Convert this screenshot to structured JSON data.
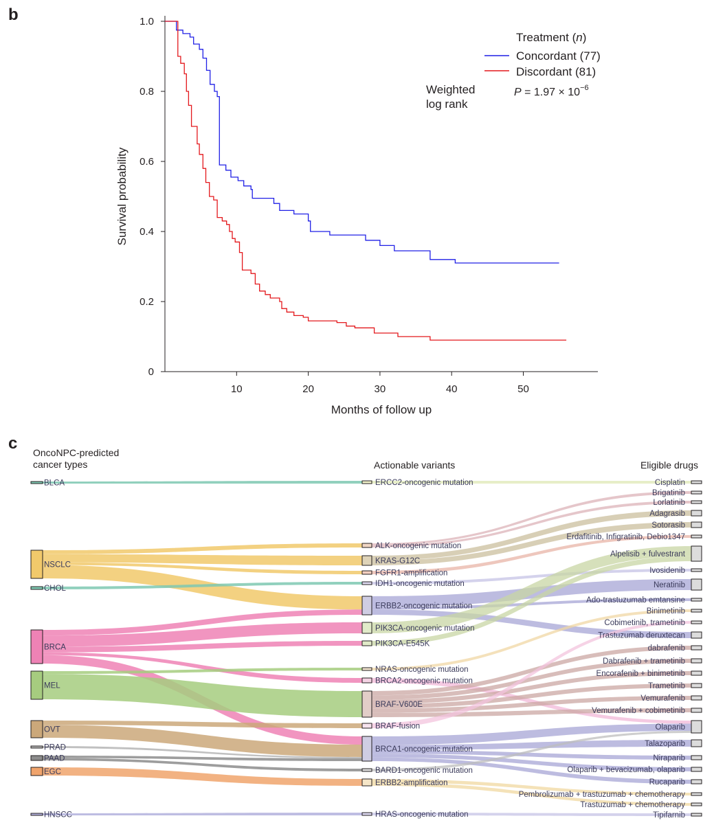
{
  "panel_b_label": "b",
  "panel_c_label": "c",
  "chart_data": [
    {
      "type": "line",
      "subtype": "kaplan-meier-step",
      "xlabel": "Months of follow up",
      "ylabel": "Survival probability",
      "xlim": [
        0,
        60
      ],
      "ylim": [
        0,
        1
      ],
      "xticks": [
        10,
        20,
        30,
        40,
        50
      ],
      "yticks": [
        0,
        0.2,
        0.4,
        0.6,
        0.8,
        1.0
      ],
      "ytick_labels": [
        "0",
        "0.2",
        "0.4",
        "0.6",
        "0.8",
        "1.0"
      ],
      "legend_title": "Treatment (n)",
      "legend_title_main": "Treatment (",
      "legend_title_n": "n",
      "legend_title_close": ")",
      "legend_position": "top-right",
      "test_label": "Weighted log rank",
      "test_label_line1": "Weighted",
      "test_label_line2": "log rank",
      "p_value": "P = 1.97 × 10−6",
      "p_value_parts": {
        "p": "P",
        "base": " = 1.97 × 10",
        "exp": "−6"
      },
      "series": [
        {
          "name": "Concordant (77)",
          "color": "#1f1fe6",
          "points": [
            [
              0,
              1.0
            ],
            [
              1.4,
              1.0
            ],
            [
              1.6,
              0.975
            ],
            [
              2.5,
              0.965
            ],
            [
              3.5,
              0.955
            ],
            [
              4.0,
              0.935
            ],
            [
              4.8,
              0.92
            ],
            [
              5.3,
              0.895
            ],
            [
              5.8,
              0.86
            ],
            [
              6.3,
              0.82
            ],
            [
              6.9,
              0.8
            ],
            [
              7.3,
              0.785
            ],
            [
              7.6,
              0.59
            ],
            [
              8.5,
              0.575
            ],
            [
              9.2,
              0.555
            ],
            [
              10.2,
              0.545
            ],
            [
              11,
              0.53
            ],
            [
              12,
              0.52
            ],
            [
              12.2,
              0.495
            ],
            [
              15.2,
              0.48
            ],
            [
              16,
              0.46
            ],
            [
              18,
              0.45
            ],
            [
              20,
              0.43
            ],
            [
              20.3,
              0.4
            ],
            [
              23,
              0.39
            ],
            [
              28,
              0.375
            ],
            [
              30,
              0.36
            ],
            [
              32,
              0.345
            ],
            [
              37,
              0.32
            ],
            [
              40.5,
              0.31
            ],
            [
              55,
              0.31
            ]
          ]
        },
        {
          "name": "Discordant (81)",
          "color": "#e3171b",
          "points": [
            [
              0,
              1.0
            ],
            [
              1.6,
              1.0
            ],
            [
              1.8,
              0.9
            ],
            [
              2.2,
              0.88
            ],
            [
              2.7,
              0.85
            ],
            [
              3.0,
              0.8
            ],
            [
              3.3,
              0.76
            ],
            [
              3.7,
              0.7
            ],
            [
              4.5,
              0.65
            ],
            [
              4.8,
              0.62
            ],
            [
              5.3,
              0.58
            ],
            [
              5.7,
              0.54
            ],
            [
              6.2,
              0.5
            ],
            [
              6.8,
              0.49
            ],
            [
              7.3,
              0.44
            ],
            [
              8,
              0.43
            ],
            [
              8.6,
              0.42
            ],
            [
              9,
              0.4
            ],
            [
              9.4,
              0.38
            ],
            [
              9.8,
              0.37
            ],
            [
              10.4,
              0.34
            ],
            [
              10.8,
              0.29
            ],
            [
              12,
              0.28
            ],
            [
              12.6,
              0.25
            ],
            [
              13.2,
              0.23
            ],
            [
              14,
              0.22
            ],
            [
              14.7,
              0.21
            ],
            [
              16,
              0.2
            ],
            [
              16.3,
              0.18
            ],
            [
              17,
              0.17
            ],
            [
              18,
              0.16
            ],
            [
              19.3,
              0.155
            ],
            [
              20,
              0.145
            ],
            [
              24,
              0.14
            ],
            [
              25.3,
              0.13
            ],
            [
              26.5,
              0.125
            ],
            [
              29.2,
              0.11
            ],
            [
              32.5,
              0.1
            ],
            [
              37,
              0.09
            ],
            [
              56,
              0.09
            ]
          ]
        }
      ]
    },
    {
      "type": "sankey",
      "column_titles": {
        "left_line1": "OncoNPC-predicted",
        "left_line2": "cancer types",
        "middle": "Actionable variants",
        "right": "Eligible drugs"
      },
      "colors": {
        "BLCA": "#7ec8b2",
        "NSCLC": "#f1c96b",
        "CHOL": "#7ec8b2",
        "BRCA": "#ee82b5",
        "MEL": "#a6cc7f",
        "OVT": "#cba87a",
        "PRAD": "#b5b5b5",
        "PAAD": "#8c8c8c",
        "EGC": "#f0a46c",
        "HNSCC": "#b3b1dd"
      },
      "left_nodes": [
        {
          "name": "BLCA",
          "fill": "#7ec8b2",
          "weight": 1
        },
        {
          "name": "NSCLC",
          "fill": "#f1c96b",
          "weight": 10
        },
        {
          "name": "CHOL",
          "fill": "#7ec8b2",
          "weight": 1
        },
        {
          "name": "BRCA",
          "fill": "#ee82b5",
          "weight": 12
        },
        {
          "name": "MEL",
          "fill": "#a6cc7f",
          "weight": 10
        },
        {
          "name": "OVT",
          "fill": "#cba87a",
          "weight": 6
        },
        {
          "name": "PRAD",
          "fill": "#b5b5b5",
          "weight": 1
        },
        {
          "name": "PAAD",
          "fill": "#8c8c8c",
          "weight": 2
        },
        {
          "name": "EGC",
          "fill": "#f0a46c",
          "weight": 3
        },
        {
          "name": "HNSCC",
          "fill": "#b3b1dd",
          "weight": 1
        }
      ],
      "middle_nodes": [
        {
          "name": "ERCC2-oncogenic mutation",
          "fill": "#efefc8",
          "weight": 1
        },
        {
          "name": "ALK-oncogenic mutation",
          "fill": "#f0d6c4",
          "weight": 1.5
        },
        {
          "name": "KRAS-G12C",
          "fill": "#ded3b8",
          "weight": 3
        },
        {
          "name": "FGFR1-amplification",
          "fill": "#f3cfc1",
          "weight": 1
        },
        {
          "name": "IDH1-oncogenic mutation",
          "fill": "#dcd8ef",
          "weight": 1
        },
        {
          "name": "ERBB2-oncogenic mutation",
          "fill": "#cfcde3",
          "weight": 7
        },
        {
          "name": "PIK3CA-oncogenic mutation",
          "fill": "#e1ebc9",
          "weight": 4
        },
        {
          "name": "PIK3CA-E545K",
          "fill": "#e1ebc9",
          "weight": 2
        },
        {
          "name": "NRAS-oncogenic mutation",
          "fill": "#f3e4cf",
          "weight": 1
        },
        {
          "name": "BRCA2-oncogenic mutation",
          "fill": "#f4d3e4",
          "weight": 1.5
        },
        {
          "name": "BRAF-V600E",
          "fill": "#e2cdc8",
          "weight": 10
        },
        {
          "name": "BRAF-fusion",
          "fill": "#f7e3ee",
          "weight": 1.5
        },
        {
          "name": "BRCA1-oncogenic mutation",
          "fill": "#cfcde3",
          "weight": 9
        },
        {
          "name": "BARD1-oncogenic mutation",
          "fill": "#dcdcdc",
          "weight": 1
        },
        {
          "name": "ERBB2-amplification",
          "fill": "#f5e6c8",
          "weight": 2
        },
        {
          "name": "HRAS-oncogenic mutation",
          "fill": "#dcd8ef",
          "weight": 1
        }
      ],
      "right_nodes": [
        {
          "name": "Cisplatin",
          "weight": 1
        },
        {
          "name": "Brigatinib",
          "weight": 1
        },
        {
          "name": "Lorlatinib",
          "weight": 1
        },
        {
          "name": "Adagrasib",
          "weight": 1.5
        },
        {
          "name": "Sotorasib",
          "weight": 1.5
        },
        {
          "name": "Erdafitinib, Infigratinib, Debio1347",
          "weight": 1
        },
        {
          "name": "Alpelisib + fulvestrant",
          "weight": 6
        },
        {
          "name": "Ivosidenib",
          "weight": 1
        },
        {
          "name": "Neratinib",
          "weight": 4
        },
        {
          "name": "Ado-trastuzumab emtansine",
          "weight": 1
        },
        {
          "name": "Binimetinib",
          "weight": 1
        },
        {
          "name": "Cobimetinib, trametinib",
          "weight": 1
        },
        {
          "name": "Trastuzumab deruxtecan",
          "weight": 2
        },
        {
          "name": "dabrafenib",
          "weight": 1.5
        },
        {
          "name": "Dabrafenib + trametinib",
          "weight": 1.5
        },
        {
          "name": "Encorafenib + binimetinib",
          "weight": 1.5
        },
        {
          "name": "Trametinib",
          "weight": 1.5
        },
        {
          "name": "Vemurafenib",
          "weight": 1.5
        },
        {
          "name": "Vemurafenib + cobimetinib",
          "weight": 1.5
        },
        {
          "name": "Olaparib",
          "weight": 5
        },
        {
          "name": "Talazoparib",
          "weight": 2
        },
        {
          "name": "Niraparib",
          "weight": 1.5
        },
        {
          "name": "Olaparib + bevacizumab, olaparib",
          "weight": 1.5
        },
        {
          "name": "Rucaparib",
          "weight": 1.5
        },
        {
          "name": "Pembrolizumab + trastuzumab + chemotherapy",
          "weight": 1
        },
        {
          "name": "Trastuzumab + chemotherapy",
          "weight": 1
        },
        {
          "name": "Tipifarnib",
          "weight": 1
        }
      ],
      "links_left": [
        [
          "BLCA",
          "ERCC2-oncogenic mutation",
          1
        ],
        [
          "NSCLC",
          "ALK-oncogenic mutation",
          1.5
        ],
        [
          "NSCLC",
          "KRAS-G12C",
          3
        ],
        [
          "NSCLC",
          "FGFR1-amplification",
          1
        ],
        [
          "NSCLC",
          "ERBB2-oncogenic mutation",
          5
        ],
        [
          "CHOL",
          "IDH1-oncogenic mutation",
          1
        ],
        [
          "BRCA",
          "ERBB2-oncogenic mutation",
          2
        ],
        [
          "BRCA",
          "PIK3CA-oncogenic mutation",
          4
        ],
        [
          "BRCA",
          "PIK3CA-E545K",
          2
        ],
        [
          "BRCA",
          "BRCA2-oncogenic mutation",
          1
        ],
        [
          "BRCA",
          "BRCA1-oncogenic mutation",
          3
        ],
        [
          "MEL",
          "NRAS-oncogenic mutation",
          1
        ],
        [
          "MEL",
          "BRAF-V600E",
          9
        ],
        [
          "OVT",
          "BRAF-fusion",
          1.5
        ],
        [
          "OVT",
          "BRCA1-oncogenic mutation",
          4.5
        ],
        [
          "PRAD",
          "BRCA1-oncogenic mutation",
          0.5
        ],
        [
          "PAAD",
          "BRCA1-oncogenic mutation",
          1
        ],
        [
          "PAAD",
          "BARD1-oncogenic mutation",
          1
        ],
        [
          "EGC",
          "ERBB2-amplification",
          2
        ],
        [
          "HNSCC",
          "HRAS-oncogenic mutation",
          1
        ]
      ],
      "links_right": [
        [
          "ERCC2-oncogenic mutation",
          "Cisplatin",
          1
        ],
        [
          "ALK-oncogenic mutation",
          "Brigatinib",
          0.75
        ],
        [
          "ALK-oncogenic mutation",
          "Lorlatinib",
          0.75
        ],
        [
          "KRAS-G12C",
          "Adagrasib",
          1.5
        ],
        [
          "KRAS-G12C",
          "Sotorasib",
          1.5
        ],
        [
          "FGFR1-amplification",
          "Erdafitinib, Infigratinib, Debio1347",
          1
        ],
        [
          "IDH1-oncogenic mutation",
          "Ivosidenib",
          1
        ],
        [
          "ERBB2-oncogenic mutation",
          "Neratinib",
          4
        ],
        [
          "ERBB2-oncogenic mutation",
          "Ado-trastuzumab emtansine",
          1
        ],
        [
          "ERBB2-oncogenic mutation",
          "Trastuzumab deruxtecan",
          2
        ],
        [
          "PIK3CA-oncogenic mutation",
          "Alpelisib + fulvestrant",
          4
        ],
        [
          "PIK3CA-E545K",
          "Alpelisib + fulvestrant",
          2
        ],
        [
          "NRAS-oncogenic mutation",
          "Binimetinib",
          1
        ],
        [
          "BRCA2-oncogenic mutation",
          "Olaparib",
          1.5
        ],
        [
          "BRAF-V600E",
          "dabrafenib",
          1.5
        ],
        [
          "BRAF-V600E",
          "Dabrafenib + trametinib",
          1.5
        ],
        [
          "BRAF-V600E",
          "Encorafenib + binimetinib",
          1.5
        ],
        [
          "BRAF-V600E",
          "Trametinib",
          1.5
        ],
        [
          "BRAF-V600E",
          "Vemurafenib",
          1.5
        ],
        [
          "BRAF-V600E",
          "Vemurafenib + cobimetinib",
          1.5
        ],
        [
          "BRAF-fusion",
          "Cobimetinib, trametinib",
          1
        ],
        [
          "BRCA1-oncogenic mutation",
          "Olaparib",
          3.5
        ],
        [
          "BRCA1-oncogenic mutation",
          "Talazoparib",
          2
        ],
        [
          "BRCA1-oncogenic mutation",
          "Niraparib",
          1.5
        ],
        [
          "BRCA1-oncogenic mutation",
          "Olaparib + bevacizumab, olaparib",
          1.5
        ],
        [
          "BRCA1-oncogenic mutation",
          "Rucaparib",
          1.5
        ],
        [
          "BARD1-oncogenic mutation",
          "Olaparib",
          1
        ],
        [
          "ERBB2-amplification",
          "Pembrolizumab + trastuzumab + chemotherapy",
          1
        ],
        [
          "ERBB2-amplification",
          "Trastuzumab + chemotherapy",
          1
        ],
        [
          "HRAS-oncogenic mutation",
          "Tipifarnib",
          1
        ]
      ]
    }
  ]
}
